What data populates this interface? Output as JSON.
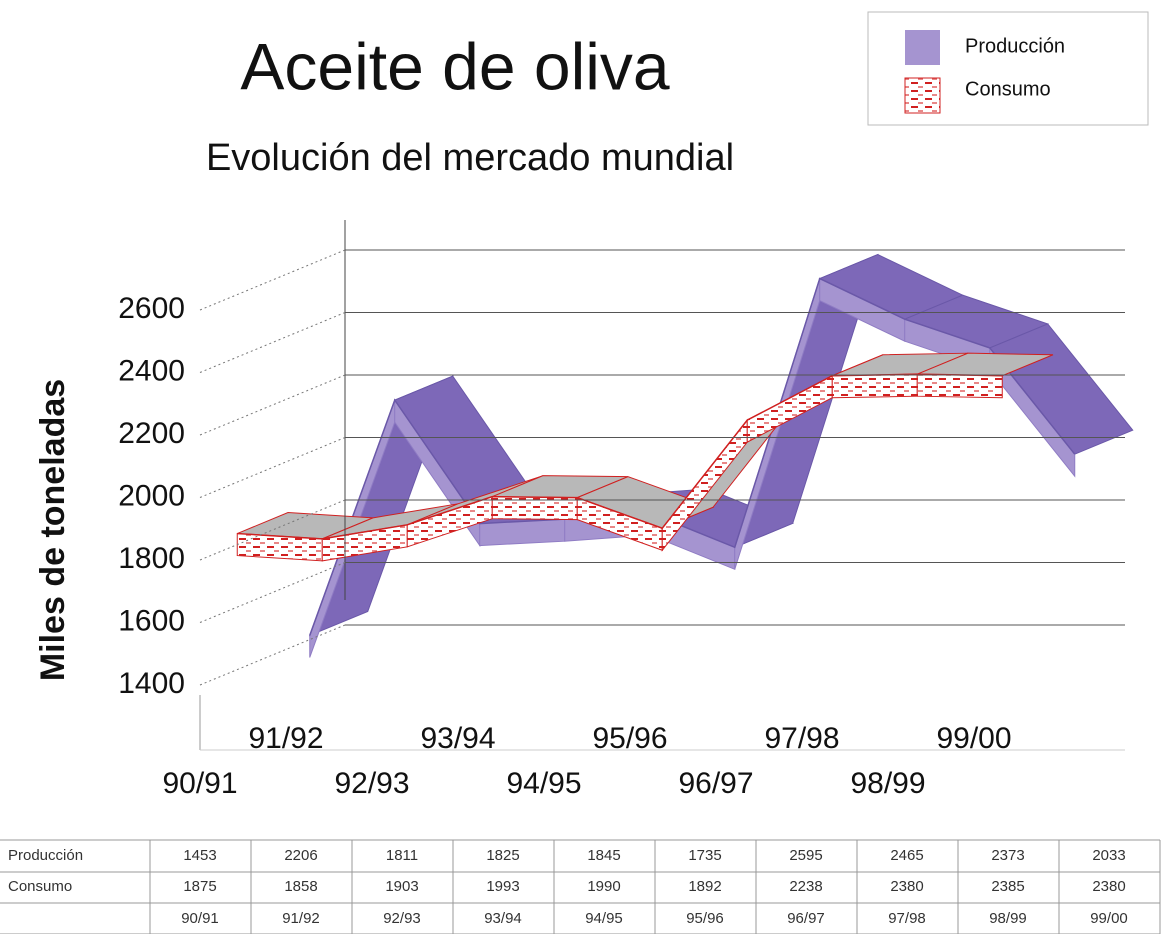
{
  "chart_data": {
    "type": "line",
    "title": "Aceite de oliva",
    "subtitle": "Evolución del mercado mundial",
    "y_label": "Miles de toneladas",
    "categories": [
      "90/91",
      "91/92",
      "92/93",
      "93/94",
      "94/95",
      "95/96",
      "96/97",
      "97/98",
      "98/99",
      "99/00"
    ],
    "series": [
      {
        "name": "Producción",
        "color": "#a594d0",
        "values": [
          1453,
          2206,
          1811,
          1825,
          1845,
          1735,
          2595,
          2465,
          2373,
          2033
        ]
      },
      {
        "name": "Consumo",
        "color": "#d02020",
        "values": [
          1875,
          1858,
          1903,
          1993,
          1990,
          1892,
          2238,
          2380,
          2385,
          2380
        ]
      }
    ],
    "ylim": [
      1400,
      2600
    ],
    "yticks": [
      1400,
      1600,
      1800,
      2000,
      2200,
      2400,
      2600
    ],
    "grid": true,
    "legend": "top-right"
  }
}
